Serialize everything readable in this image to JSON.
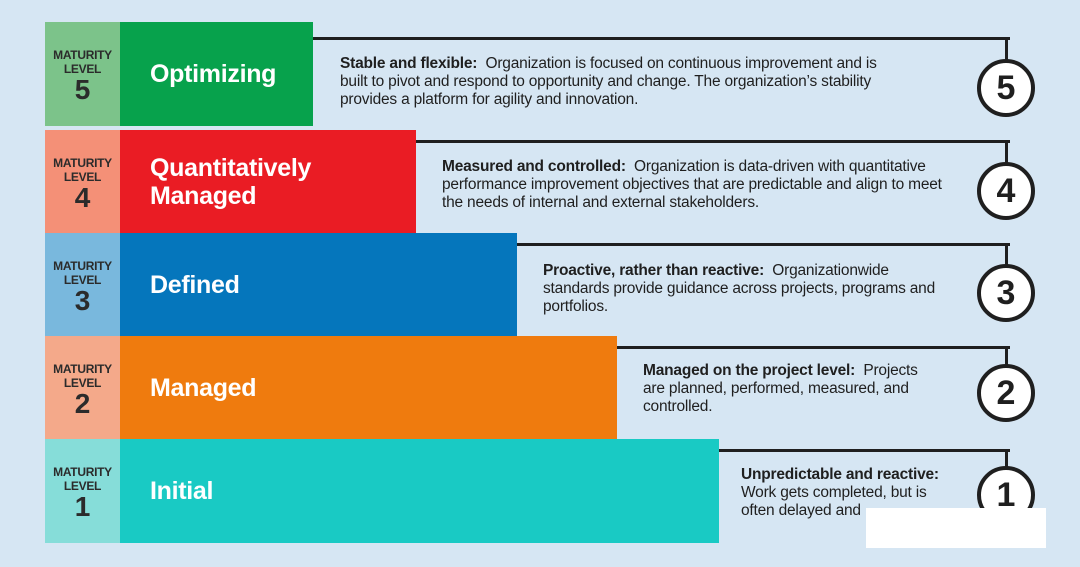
{
  "levels": [
    {
      "tag_line1": "MATURITY",
      "tag_line2": "LEVEL",
      "num": "5",
      "name": "Optimizing",
      "desc_bold": "Stable and flexible:",
      "desc_text": "Organization is focused on continuous improvement and is built to pivot and respond to opportunity and change. The organization’s stability provides a platform for agility and innovation.",
      "circle": "5",
      "tag_color": "#7cc38a",
      "bar_color": "#07a24c"
    },
    {
      "tag_line1": "MATURITY",
      "tag_line2": "LEVEL",
      "num": "4",
      "name": "Quantitatively Managed",
      "desc_bold": "Measured and controlled:",
      "desc_text": "Organization is data-driven with quantitative performance improvement objectives that are predictable and align to meet the needs of internal and external stakeholders.",
      "circle": "4",
      "tag_color": "#f49077",
      "bar_color": "#ea1c24"
    },
    {
      "tag_line1": "MATURITY",
      "tag_line2": "LEVEL",
      "num": "3",
      "name": "Defined",
      "desc_bold": "Proactive, rather than reactive:",
      "desc_text": "Organizationwide standards provide guidance across projects, programs and portfolios.",
      "circle": "3",
      "tag_color": "#79b8dd",
      "bar_color": "#0576bc"
    },
    {
      "tag_line1": "MATURITY",
      "tag_line2": "LEVEL",
      "num": "2",
      "name": "Managed",
      "desc_bold": "Managed on the project level:",
      "desc_text": "Projects are planned, performed, measured, and controlled.",
      "circle": "2",
      "tag_color": "#f4a98a",
      "bar_color": "#ef7b0e"
    },
    {
      "tag_line1": "MATURITY",
      "tag_line2": "LEVEL",
      "num": "1",
      "name": "Initial",
      "desc_bold": "Unpredictable and reactive:",
      "desc_text": "Work gets completed, but is often delayed and",
      "circle": "1",
      "tag_color": "#86ddd9",
      "bar_color": "#19cac4"
    }
  ]
}
